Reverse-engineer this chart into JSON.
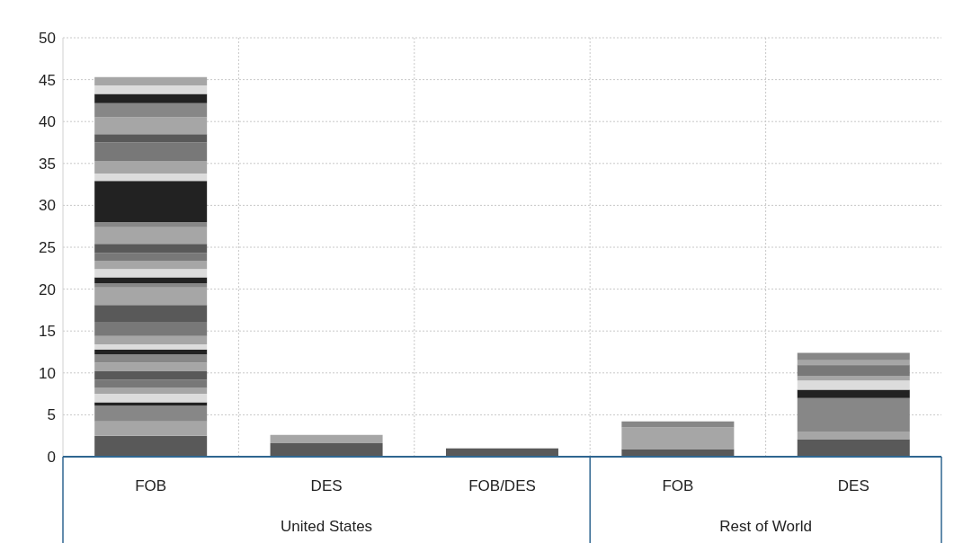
{
  "chart_data": {
    "type": "bar",
    "stacked": true,
    "categories": [
      "FOB",
      "DES",
      "FOB/DES",
      "FOB",
      "DES"
    ],
    "annotations": [
      "United States",
      "Rest of World"
    ],
    "ylim": [
      0,
      50
    ],
    "yticks": [
      0,
      5,
      10,
      15,
      20,
      25,
      30,
      35,
      40,
      45,
      50
    ],
    "grid": true,
    "series": [
      {
        "color": "#595959",
        "values": [
          2.5,
          1.6,
          1.0,
          0.9,
          2.1
        ]
      },
      {
        "color": "#a6a6a6",
        "values": [
          1.7,
          1.0,
          null,
          2.6,
          0.9
        ]
      },
      {
        "color": "#878787",
        "values": [
          1.9,
          null,
          null,
          0.7,
          4.0
        ]
      },
      {
        "color": "#222222",
        "values": [
          0.4,
          null,
          null,
          null,
          1.0
        ]
      },
      {
        "color": "#dcdcdc",
        "values": [
          1.0,
          null,
          null,
          null,
          1.1
        ]
      },
      {
        "color": "#a6a6a6",
        "values": [
          0.7,
          null,
          null,
          null,
          0.5
        ]
      },
      {
        "color": "#787878",
        "values": [
          1.0,
          null,
          null,
          null,
          1.3
        ]
      },
      {
        "color": "#595959",
        "values": [
          1.0,
          null,
          null,
          null,
          0.1
        ]
      },
      {
        "color": "#a6a6a6",
        "values": [
          1.0,
          null,
          null,
          null,
          0.5
        ]
      },
      {
        "color": "#878787",
        "values": [
          1.0,
          null,
          null,
          null,
          0.9
        ]
      },
      {
        "color": "#222222",
        "values": [
          0.6,
          null,
          null,
          null,
          null
        ]
      },
      {
        "color": "#dcdcdc",
        "values": [
          0.6,
          null,
          null,
          null,
          null
        ]
      },
      {
        "color": "#a6a6a6",
        "values": [
          1.0,
          null,
          null,
          null,
          null
        ]
      },
      {
        "color": "#787878",
        "values": [
          1.7,
          null,
          null,
          null,
          null
        ]
      },
      {
        "color": "#595959",
        "values": [
          2.0,
          null,
          null,
          null,
          null
        ]
      },
      {
        "color": "#a6a6a6",
        "values": [
          2.1,
          null,
          null,
          null,
          null
        ]
      },
      {
        "color": "#878787",
        "values": [
          0.5,
          null,
          null,
          null,
          null
        ]
      },
      {
        "color": "#222222",
        "values": [
          0.7,
          null,
          null,
          null,
          null
        ]
      },
      {
        "color": "#dcdcdc",
        "values": [
          1.0,
          null,
          null,
          null,
          null
        ]
      },
      {
        "color": "#a6a6a6",
        "values": [
          1.0,
          null,
          null,
          null,
          null
        ]
      },
      {
        "color": "#787878",
        "values": [
          0.9,
          null,
          null,
          null,
          null
        ]
      },
      {
        "color": "#595959",
        "values": [
          1.1,
          null,
          null,
          null,
          null
        ]
      },
      {
        "color": "#a6a6a6",
        "values": [
          2.0,
          null,
          null,
          null,
          null
        ]
      },
      {
        "color": "#878787",
        "values": [
          0.6,
          null,
          null,
          null,
          null
        ]
      },
      {
        "color": "#222222",
        "values": [
          4.9,
          null,
          null,
          null,
          null
        ]
      },
      {
        "color": "#dcdcdc",
        "values": [
          0.9,
          null,
          null,
          null,
          null
        ]
      },
      {
        "color": "#a6a6a6",
        "values": [
          1.5,
          null,
          null,
          null,
          null
        ]
      },
      {
        "color": "#787878",
        "values": [
          2.2,
          null,
          null,
          null,
          null
        ]
      },
      {
        "color": "#595959",
        "values": [
          1.0,
          null,
          null,
          null,
          null
        ]
      },
      {
        "color": "#a6a6a6",
        "values": [
          2.0,
          null,
          null,
          null,
          null
        ]
      },
      {
        "color": "#878787",
        "values": [
          1.7,
          null,
          null,
          null,
          null
        ]
      },
      {
        "color": "#222222",
        "values": [
          1.1,
          null,
          null,
          null,
          null
        ]
      },
      {
        "color": "#dcdcdc",
        "values": [
          1.0,
          null,
          null,
          null,
          null
        ]
      },
      {
        "color": "#a6a6a6",
        "values": [
          1.0,
          null,
          null,
          null,
          null
        ]
      }
    ]
  }
}
